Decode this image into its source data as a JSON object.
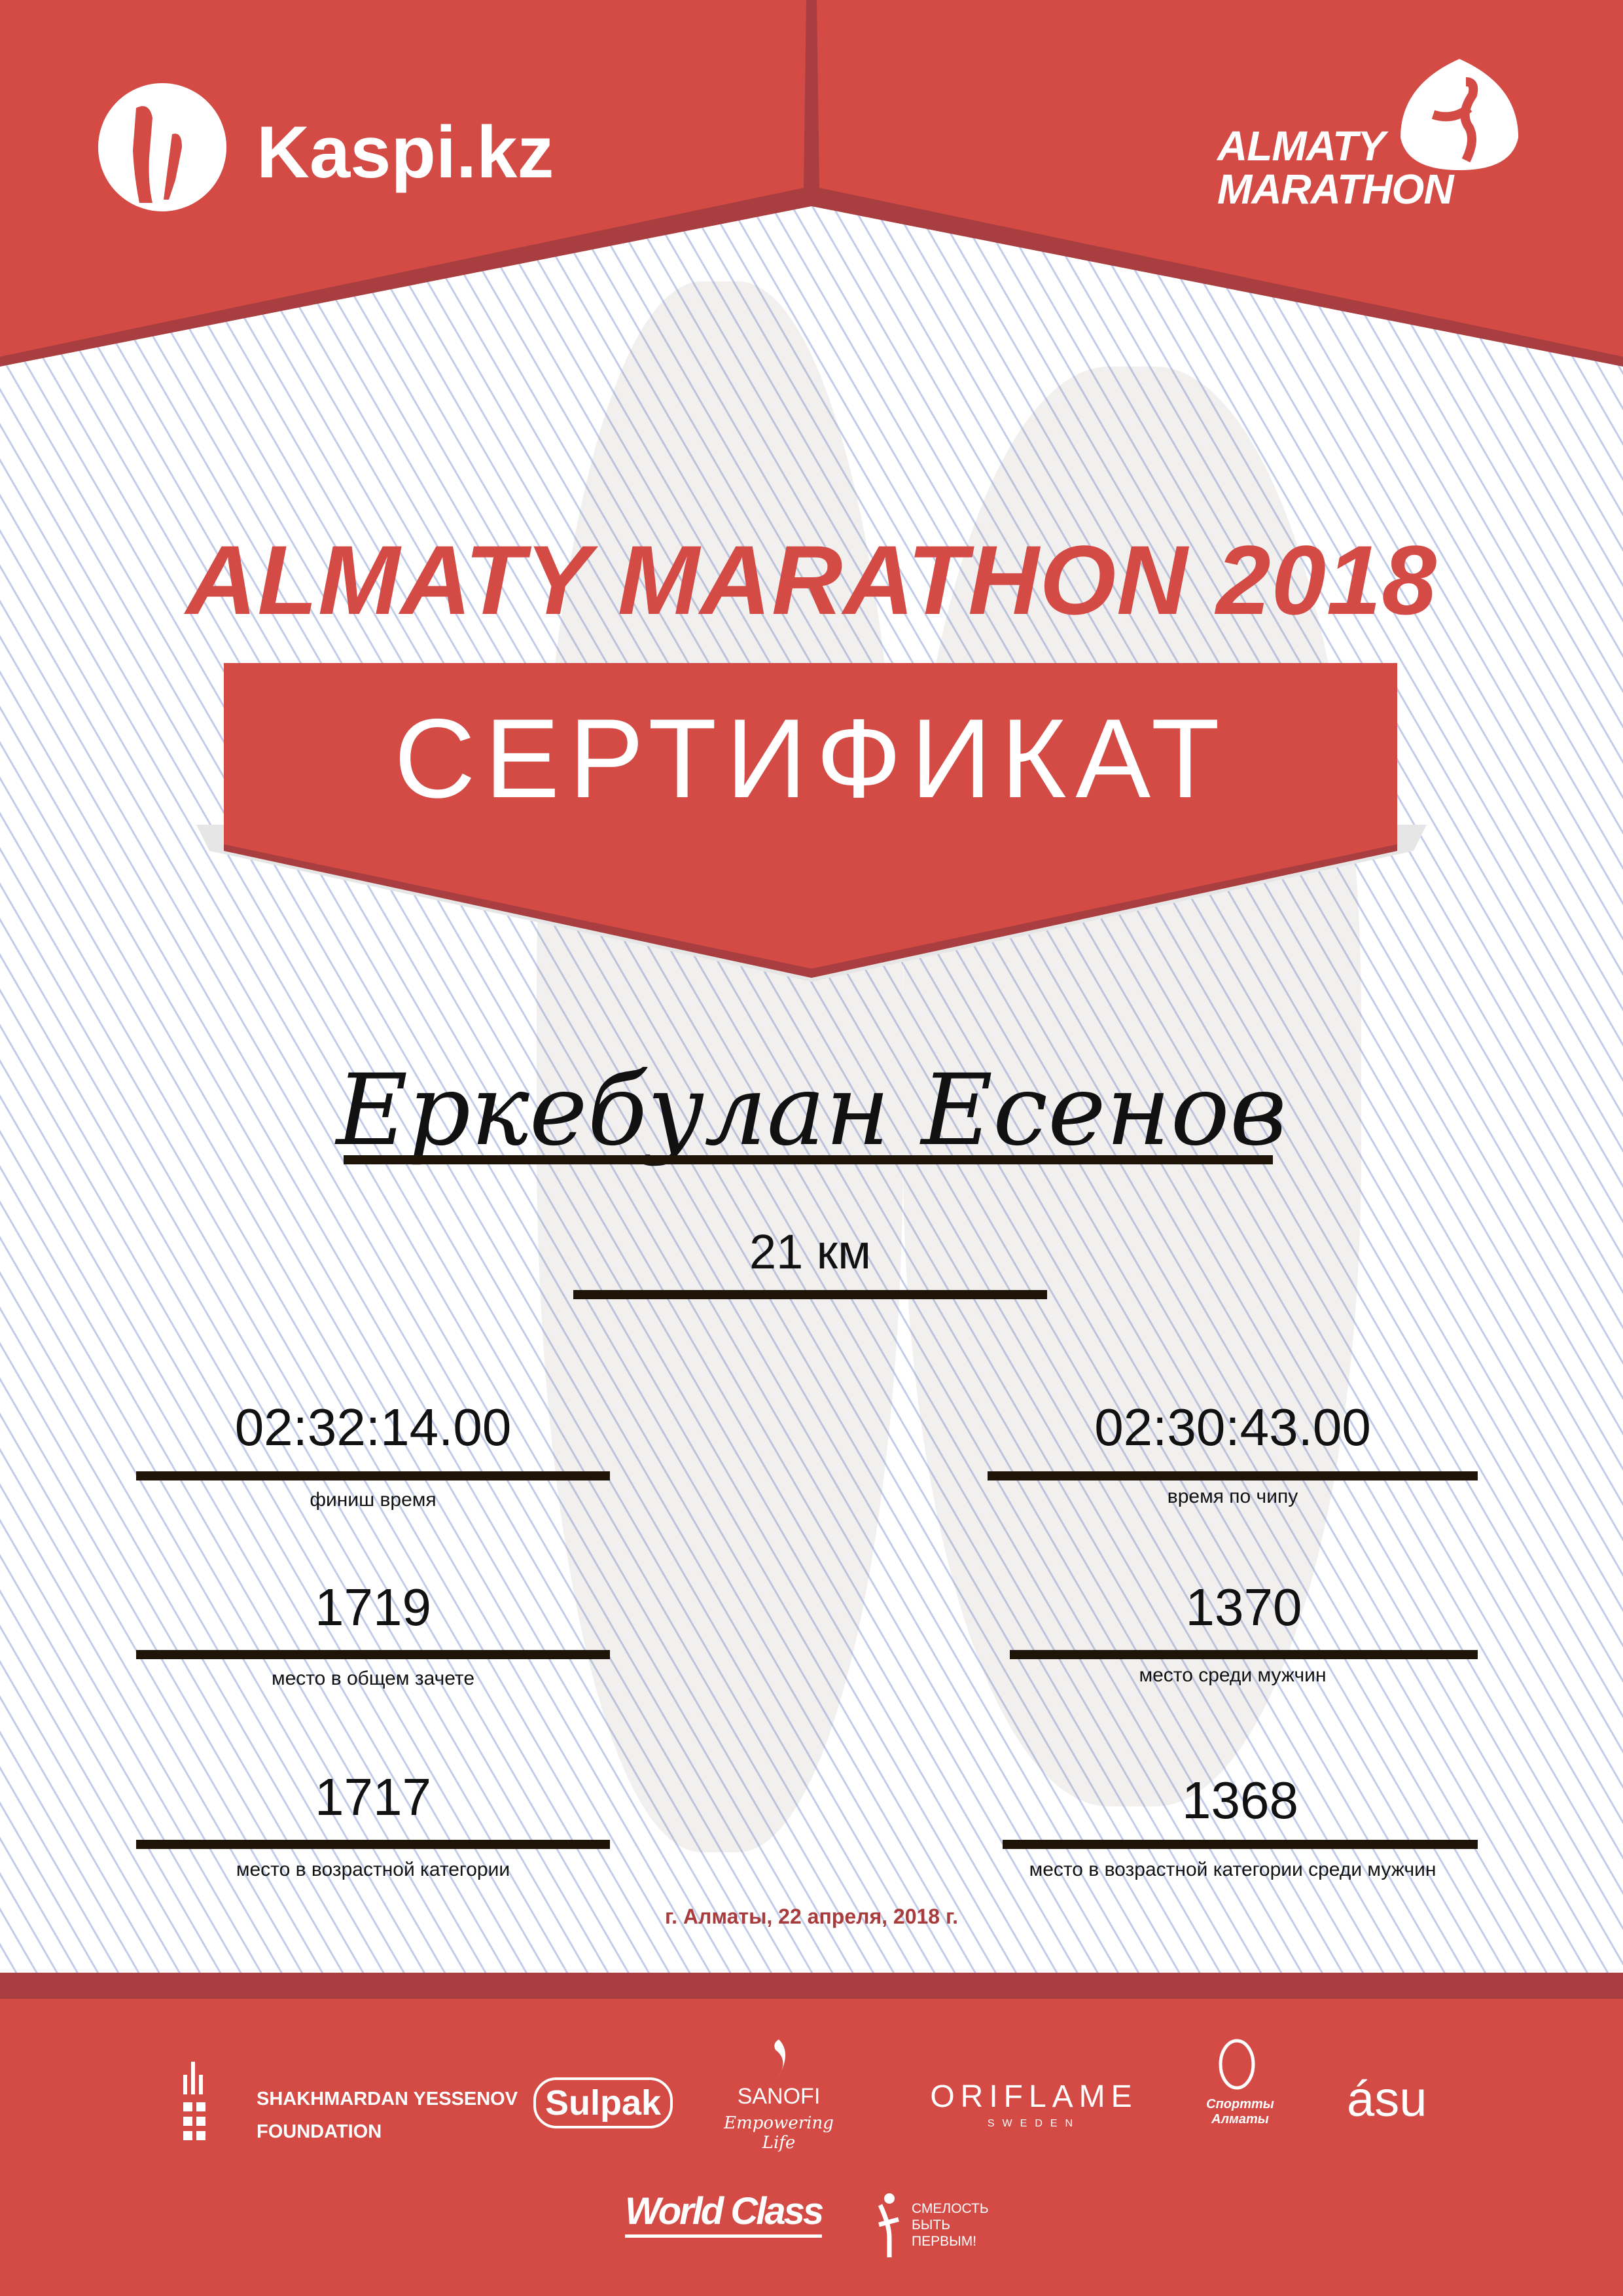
{
  "header": {
    "sponsor_logo": "Kaspi.kz",
    "event_logo_line1": "ALMATY",
    "event_logo_line2": "MARATHON"
  },
  "title": "ALMATY MARATHON 2018",
  "certificate_label": "СЕРТИФИКАТ",
  "participant_name": "Еркебулан Есенов",
  "distance": "21 км",
  "results": {
    "finish_time": {
      "value": "02:32:14.00",
      "label": "финиш время"
    },
    "chip_time": {
      "value": "02:30:43.00",
      "label": "время по чипу"
    },
    "overall_place": {
      "value": "1719",
      "label": "место в общем зачете"
    },
    "male_place": {
      "value": "1370",
      "label": "место среди мужчин"
    },
    "age_place": {
      "value": "1717",
      "label": "место в возрастной категории"
    },
    "age_male_place": {
      "value": "1368",
      "label": "место в возрастной категории среди мужчин"
    }
  },
  "date_line": "г. Алматы, 22 апреля, 2018 г.",
  "sponsors": {
    "yessenov_line1": "SHAKHMARDAN YESSENOV",
    "yessenov_line2": "FOUNDATION",
    "sulpak": "Sulpak",
    "sanofi": "SANOFI",
    "sanofi_tagline": "Empowering Life",
    "oriflame": "ORIFLAME",
    "oriflame_sub": "SWEDEN",
    "sport_almaty": "Спортты Алматы",
    "asu": "ásu",
    "world_class": "World Class",
    "fund_line1": "СМЕЛОСТЬ",
    "fund_line2": "БЫТЬ",
    "fund_line3": "ПЕРВЫМ!"
  },
  "colors": {
    "brand_red": "#d44a44",
    "dark_red": "#a83e40",
    "date_red": "#a83c3c"
  }
}
